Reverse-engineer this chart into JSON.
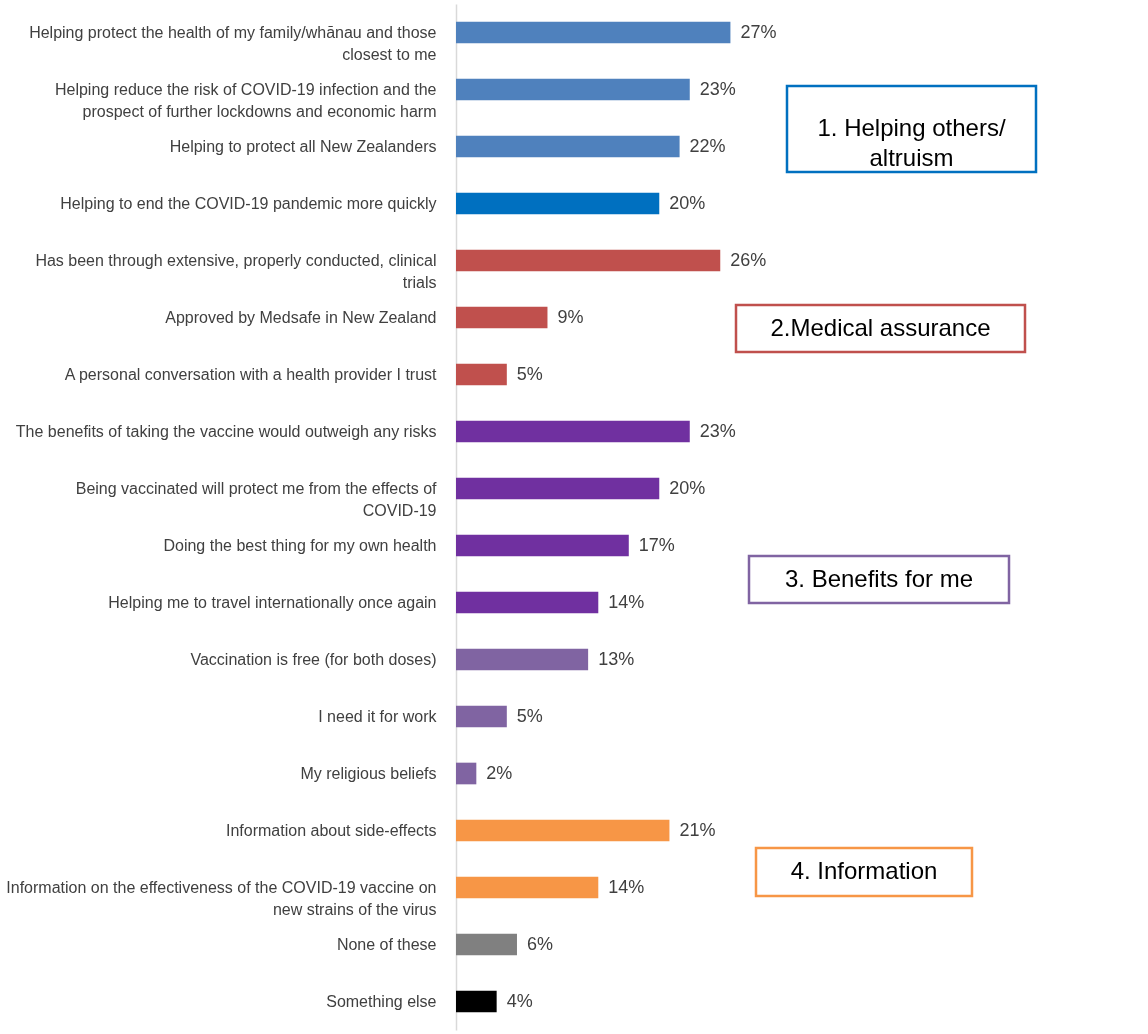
{
  "chart_data": {
    "type": "bar",
    "orientation": "horizontal",
    "value_labels": [
      "27%",
      "23%",
      "22%",
      "20%",
      "26%",
      "9%",
      "5%",
      "23%",
      "20%",
      "17%",
      "14%",
      "13%",
      "5%",
      "2%",
      "21%",
      "14%",
      "6%",
      "4%"
    ],
    "categories": [
      "Helping protect the health of my family/whānau and those closest to me",
      "Helping reduce the risk of COVID-19 infection and the prospect of further lockdowns and economic harm",
      "Helping to protect all New Zealanders",
      "Helping to end the COVID-19 pandemic more quickly",
      "Has been through extensive, properly conducted, clinical trials",
      "Approved by Medsafe in New Zealand",
      "A personal conversation with a health provider I trust",
      "The benefits of taking the vaccine would outweigh any risks",
      "Being vaccinated will protect me from the effects of COVID-19",
      "Doing the best thing for my own health",
      "Helping me to travel internationally once again",
      "Vaccination is free (for both doses)",
      "I need it for work",
      "My religious beliefs",
      "Information about side-effects",
      "Information on the effectiveness of the COVID-19 vaccine on new strains of the virus",
      "None of these",
      "Something else"
    ],
    "values": [
      27,
      23,
      22,
      20,
      26,
      9,
      5,
      23,
      20,
      17,
      14,
      13,
      5,
      2,
      21,
      14,
      6,
      4
    ],
    "colors": [
      "#4f81bd",
      "#4f81bd",
      "#4f81bd",
      "#0070c0",
      "#c0504d",
      "#c0504d",
      "#c0504d",
      "#7030a0",
      "#7030a0",
      "#7030a0",
      "#7030a0",
      "#8064a2",
      "#8064a2",
      "#8064a2",
      "#f79646",
      "#f79646",
      "#808080",
      "#000000"
    ],
    "annotations": [
      "1. Helping others/ altruism",
      "2.Medical assurance",
      "3. Benefits for me",
      "4. Information"
    ]
  }
}
